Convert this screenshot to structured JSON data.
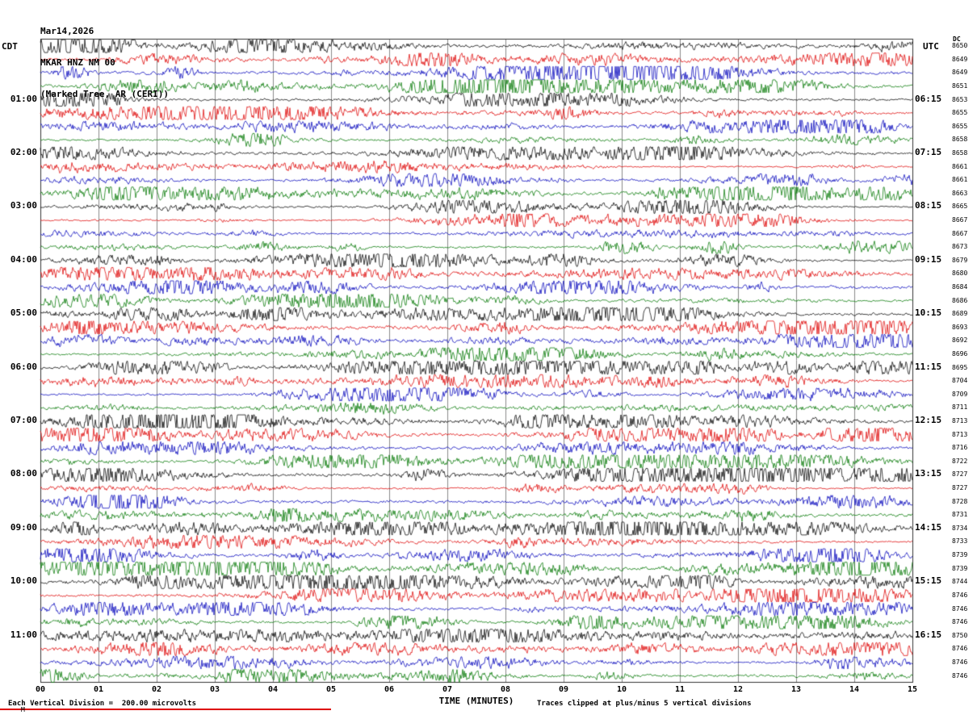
{
  "title": {
    "line1": "Mar14,2026",
    "line2": "MKAR HNZ NM 00",
    "line3": "(Marked Tree, AR (CERI))"
  },
  "axes": {
    "left_header": "CDT",
    "right_header": "UTC",
    "dc_header": "DC",
    "left_labels": [
      "01:00",
      "02:00",
      "03:00",
      "04:00",
      "05:00",
      "06:00",
      "07:00",
      "08:00",
      "09:00",
      "10:00",
      "11:00"
    ],
    "right_labels": [
      "06:15",
      "07:15",
      "08:15",
      "09:15",
      "10:15",
      "11:15",
      "12:15",
      "13:15",
      "14:15",
      "15:15",
      "16:15"
    ],
    "minute_labels": [
      "00",
      "01",
      "02",
      "03",
      "04",
      "05",
      "06",
      "07",
      "08",
      "09",
      "10",
      "11",
      "12",
      "13",
      "14",
      "15"
    ],
    "x_axis_title": "TIME (MINUTES)"
  },
  "footer": {
    "left": "Each Vertical Division =  200.00 microvolts",
    "right": "Traces clipped at plus/minus 5 vertical divisions",
    "mark": "M"
  },
  "trace_colors": [
    "#000000",
    "#dd0000",
    "#0000bb",
    "#007700"
  ],
  "dc_values": [
    8650,
    8649,
    8649,
    8651,
    8653,
    8655,
    8655,
    8658,
    8658,
    8661,
    8661,
    8663,
    8665,
    8667,
    8667,
    8673,
    8679,
    8680,
    8684,
    8686,
    8689,
    8693,
    8692,
    8696,
    8695,
    8704,
    8709,
    8711,
    8713,
    8713,
    8716,
    8722,
    8727,
    8727,
    8728,
    8731,
    8734,
    8733,
    8739,
    8739,
    8744,
    8746,
    8746,
    8746,
    8750,
    8746,
    8746,
    8746
  ],
  "chart_data": {
    "type": "line",
    "subtype": "helicorder-seismogram",
    "title": "MKAR HNZ NM 00 (Marked Tree, AR (CERI)) Mar14,2026",
    "xlabel": "TIME (MINUTES)",
    "x_range": [
      0,
      15
    ],
    "x_ticks": [
      "00",
      "01",
      "02",
      "03",
      "04",
      "05",
      "06",
      "07",
      "08",
      "09",
      "10",
      "11",
      "12",
      "13",
      "14",
      "15"
    ],
    "rows": 48,
    "row_duration_minutes": 15,
    "left_axis_timezone": "CDT",
    "right_axis_timezone": "UTC",
    "first_row_cdt": "00:00",
    "first_row_utc": "05:15",
    "cdt_hour_labels": [
      "01:00",
      "02:00",
      "03:00",
      "04:00",
      "05:00",
      "06:00",
      "07:00",
      "08:00",
      "09:00",
      "10:00",
      "11:00"
    ],
    "utc_hour_labels": [
      "06:15",
      "07:15",
      "08:15",
      "09:15",
      "10:15",
      "11:15",
      "12:15",
      "13:15",
      "14:15",
      "15:15",
      "16:15"
    ],
    "trace_color_cycle": [
      "black",
      "red",
      "blue",
      "green"
    ],
    "dc_offsets_right_column": [
      8650,
      8649,
      8649,
      8651,
      8653,
      8655,
      8655,
      8658,
      8658,
      8661,
      8661,
      8663,
      8665,
      8667,
      8667,
      8673,
      8679,
      8680,
      8684,
      8686,
      8689,
      8693,
      8692,
      8696,
      8695,
      8704,
      8709,
      8711,
      8713,
      8713,
      8716,
      8722,
      8727,
      8727,
      8728,
      8731,
      8734,
      8733,
      8739,
      8739,
      8744,
      8746,
      8746,
      8746,
      8750,
      8746,
      8746,
      8746
    ],
    "vertical_division_microvolts": 200.0,
    "clipping_note": "Traces clipped at plus/minus 5 vertical divisions",
    "grid": "vertical gridlines at each minute",
    "waveform_description": "continuous background seismic noise with intermittent small-amplitude bursts on each 15-minute trace; individual sample values not legible"
  }
}
